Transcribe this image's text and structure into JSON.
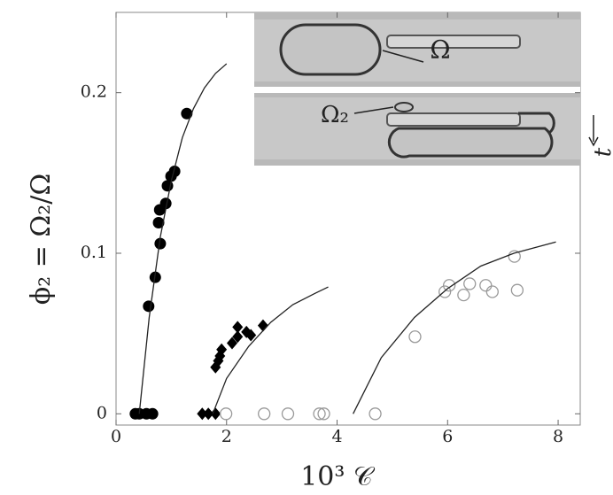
{
  "chart_data": {
    "type": "scatter",
    "xlabel": "10³ 𝒞",
    "ylabel": "ϕ₂ = Ω₂/Ω",
    "xlim": [
      0,
      8.4
    ],
    "ylim": [
      -0.007,
      0.25
    ],
    "xticks": [
      0,
      2,
      4,
      6,
      8
    ],
    "yticks": [
      0,
      0.1,
      0.2
    ],
    "inset": {
      "labels": [
        "Ω",
        "Ω₂",
        "t"
      ]
    },
    "series": [
      {
        "kind": "points",
        "marker": "filled-circle",
        "color": "#000",
        "x": [
          0.35,
          0.42,
          0.55,
          0.66,
          0.59,
          0.71,
          0.8,
          0.77,
          0.79,
          0.9,
          0.93,
          0.995,
          1.06,
          1.28
        ],
        "values": [
          0,
          0,
          0,
          0,
          0.067,
          0.085,
          0.106,
          0.119,
          0.127,
          0.131,
          0.142,
          0.148,
          0.151,
          0.187
        ]
      },
      {
        "kind": "points",
        "marker": "filled-diamond",
        "color": "#000",
        "x": [
          1.56,
          1.67,
          1.8,
          1.8,
          1.85,
          1.88,
          1.91,
          2.1,
          2.2,
          2.2,
          2.36,
          2.44,
          2.66
        ],
        "values": [
          0,
          0,
          0,
          0.029,
          0.033,
          0.036,
          0.04,
          0.044,
          0.048,
          0.054,
          0.051,
          0.049,
          0.055
        ]
      },
      {
        "kind": "points",
        "marker": "open-circle",
        "color": "#999",
        "x": [
          1.99,
          2.68,
          3.11,
          3.68,
          3.76,
          4.69,
          5.41,
          5.95,
          6.03,
          6.29,
          6.4,
          6.69,
          6.81,
          7.21,
          7.26
        ],
        "values": [
          0,
          0,
          0,
          0,
          0,
          0,
          0.048,
          0.076,
          0.08,
          0.074,
          0.081,
          0.08,
          0.076,
          0.098,
          0.077
        ]
      },
      {
        "kind": "line",
        "color": "#222",
        "x": [
          0.42,
          0.6,
          0.8,
          1.0,
          1.2,
          1.4,
          1.6,
          1.8,
          2.0
        ],
        "values": [
          0,
          0.06,
          0.11,
          0.145,
          0.172,
          0.19,
          0.203,
          0.212,
          0.218
        ]
      },
      {
        "kind": "line",
        "color": "#222",
        "x": [
          1.75,
          2.0,
          2.4,
          2.8,
          3.2,
          3.6,
          3.84
        ],
        "values": [
          0,
          0.022,
          0.042,
          0.057,
          0.068,
          0.075,
          0.079
        ]
      },
      {
        "kind": "line",
        "color": "#222",
        "x": [
          4.29,
          4.8,
          5.4,
          6.0,
          6.6,
          7.2,
          7.96
        ],
        "values": [
          0,
          0.035,
          0.06,
          0.078,
          0.092,
          0.1,
          0.107
        ]
      }
    ]
  }
}
